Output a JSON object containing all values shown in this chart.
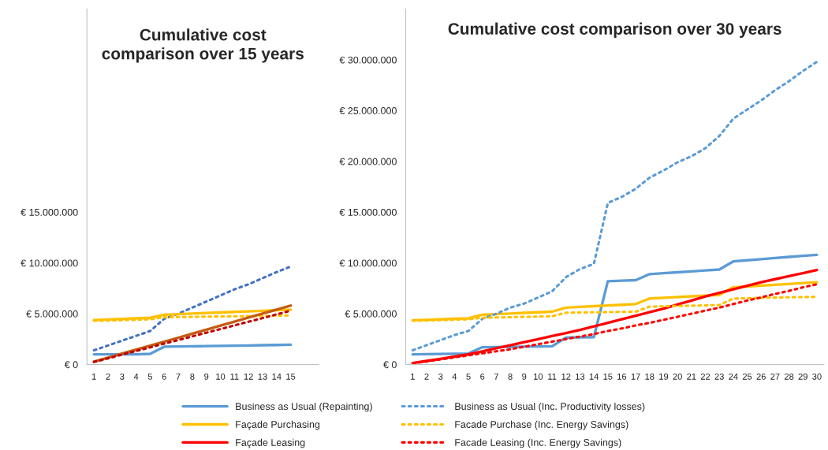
{
  "chart_data": [
    {
      "type": "line",
      "title": "Cumulative cost\ncomparison over 15 years",
      "categories": [
        "1",
        "2",
        "3",
        "4",
        "5",
        "6",
        "7",
        "8",
        "9",
        "10",
        "11",
        "12",
        "13",
        "14",
        "15"
      ],
      "ylim": [
        0,
        35000000
      ],
      "yticks": [
        {
          "value": 0,
          "label": "€ 0"
        },
        {
          "value": 5000000,
          "label": "€ 5.000.000"
        },
        {
          "value": 10000000,
          "label": "€ 10.000.000"
        },
        {
          "value": 15000000,
          "label": "€ 15.000.000"
        }
      ],
      "grid": false,
      "legend": false,
      "marker": "none",
      "series": [
        {
          "color": "#5b9bd5",
          "line_style": "solid",
          "values": [
            1000000,
            1000000,
            1000000,
            1000000,
            1050000,
            1750000,
            1770000,
            1790000,
            1810000,
            1830000,
            1850000,
            1870000,
            1900000,
            1920000,
            1950000
          ]
        },
        {
          "color": "#4472c4",
          "line_style": "dotted",
          "values": [
            1400000,
            1870000,
            2350000,
            2820000,
            3300000,
            4500000,
            5000000,
            5600000,
            6200000,
            6800000,
            7400000,
            7900000,
            8500000,
            9100000,
            9650000
          ]
        },
        {
          "color": "#ffc000",
          "line_style": "solid",
          "values": [
            4370000,
            4430000,
            4490000,
            4550000,
            4600000,
            4900000,
            4960000,
            5010000,
            5070000,
            5120000,
            5180000,
            5230000,
            5290000,
            5340000,
            5400000
          ]
        },
        {
          "color": "#ffc000",
          "line_style": "dotted",
          "values": [
            4300000,
            4330000,
            4360000,
            4400000,
            4450000,
            4650000,
            4670000,
            4690000,
            4710000,
            4730000,
            4750000,
            4770000,
            4790000,
            4810000,
            4830000
          ]
        },
        {
          "color": "#c55a11",
          "line_style": "solid",
          "values": [
            280000,
            670000,
            1070000,
            1460000,
            1860000,
            2250000,
            2640000,
            3040000,
            3430000,
            3830000,
            4220000,
            4620000,
            5010000,
            5410000,
            5800000
          ]
        },
        {
          "color": "#c00000",
          "line_style": "dotted",
          "values": [
            250000,
            610000,
            970000,
            1330000,
            1690000,
            2050000,
            2410000,
            2770000,
            3130000,
            3490000,
            3850000,
            4210000,
            4570000,
            4930000,
            5300000
          ]
        }
      ]
    },
    {
      "type": "line",
      "title": "Cumulative cost comparison over 30 years",
      "categories": [
        "1",
        "2",
        "3",
        "4",
        "5",
        "6",
        "7",
        "8",
        "9",
        "10",
        "11",
        "12",
        "13",
        "14",
        "15",
        "16",
        "17",
        "18",
        "19",
        "20",
        "21",
        "22",
        "23",
        "24",
        "25",
        "26",
        "27",
        "28",
        "29",
        "30"
      ],
      "ylim": [
        0,
        35000000
      ],
      "yticks": [
        {
          "value": 0,
          "label": "€ 0"
        },
        {
          "value": 5000000,
          "label": "€ 5.000.000"
        },
        {
          "value": 10000000,
          "label": "€ 10.000.000"
        },
        {
          "value": 15000000,
          "label": "€ 15.000.000"
        },
        {
          "value": 20000000,
          "label": "€ 20.000.000"
        },
        {
          "value": 25000000,
          "label": "€ 25.000.000"
        },
        {
          "value": 30000000,
          "label": "€ 30.000.000"
        }
      ],
      "grid": false,
      "legend": "bottom",
      "marker": "none",
      "series": [
        {
          "name": "Business as Usual (Repainting)",
          "color": "#5b9bd5",
          "line_style": "solid",
          "values": [
            1000000,
            1020000,
            1040000,
            1060000,
            1080000,
            1700000,
            1720000,
            1740000,
            1760000,
            1780000,
            1800000,
            2650000,
            2680000,
            2700000,
            8200000,
            8250000,
            8300000,
            8900000,
            8990000,
            9080000,
            9170000,
            9260000,
            9350000,
            10150000,
            10260000,
            10370000,
            10480000,
            10590000,
            10700000,
            10800000
          ]
        },
        {
          "name": "Façade Purchasing",
          "color": "#ffc000",
          "line_style": "solid",
          "values": [
            4350000,
            4400000,
            4450000,
            4500000,
            4550000,
            4900000,
            4960000,
            5020000,
            5080000,
            5140000,
            5200000,
            5600000,
            5670000,
            5740000,
            5810000,
            5880000,
            5950000,
            6500000,
            6570000,
            6640000,
            6710000,
            6780000,
            6850000,
            7600000,
            7680000,
            7770000,
            7850000,
            7930000,
            8020000,
            8100000
          ]
        },
        {
          "name": "Façade Leasing",
          "color": "#ff0000",
          "line_style": "solid",
          "values": [
            150000,
            350000,
            550000,
            780000,
            1000000,
            1300000,
            1600000,
            1900000,
            2200000,
            2500000,
            2800000,
            3100000,
            3400000,
            3750000,
            4100000,
            4450000,
            4800000,
            5150000,
            5500000,
            5900000,
            6300000,
            6700000,
            7050000,
            7400000,
            7750000,
            8100000,
            8400000,
            8700000,
            9000000,
            9300000
          ]
        },
        {
          "name": "Business as Usual (Inc. Productivity losses)",
          "color": "#5b9bd5",
          "line_style": "dotted",
          "values": [
            1400000,
            1900000,
            2400000,
            2900000,
            3300000,
            4500000,
            5000000,
            5600000,
            6000000,
            6600000,
            7200000,
            8600000,
            9400000,
            9900000,
            15900000,
            16500000,
            17300000,
            18400000,
            19100000,
            19900000,
            20500000,
            21300000,
            22500000,
            24200000,
            25100000,
            26000000,
            27000000,
            27900000,
            28900000,
            29800000
          ]
        },
        {
          "name": "Facade Purchase (Inc. Energy Savings)",
          "color": "#ffc000",
          "line_style": "dotted",
          "values": [
            4300000,
            4330000,
            4360000,
            4400000,
            4450000,
            4600000,
            4630000,
            4660000,
            4690000,
            4720000,
            4750000,
            5100000,
            5120000,
            5140000,
            5160000,
            5180000,
            5200000,
            5700000,
            5730000,
            5760000,
            5790000,
            5820000,
            5850000,
            6500000,
            6530000,
            6560000,
            6590000,
            6620000,
            6640000,
            6650000
          ]
        },
        {
          "name": "Facade Leasing (Inc. Energy Savings)",
          "color": "#ff0000",
          "line_style": "dotted",
          "values": [
            100000,
            300000,
            500000,
            700000,
            900000,
            1100000,
            1300000,
            1500000,
            1750000,
            2000000,
            2250000,
            2500000,
            2750000,
            3000000,
            3300000,
            3550000,
            3850000,
            4100000,
            4400000,
            4700000,
            5000000,
            5300000,
            5600000,
            5950000,
            6300000,
            6600000,
            6950000,
            7250000,
            7600000,
            7900000
          ]
        }
      ]
    }
  ]
}
